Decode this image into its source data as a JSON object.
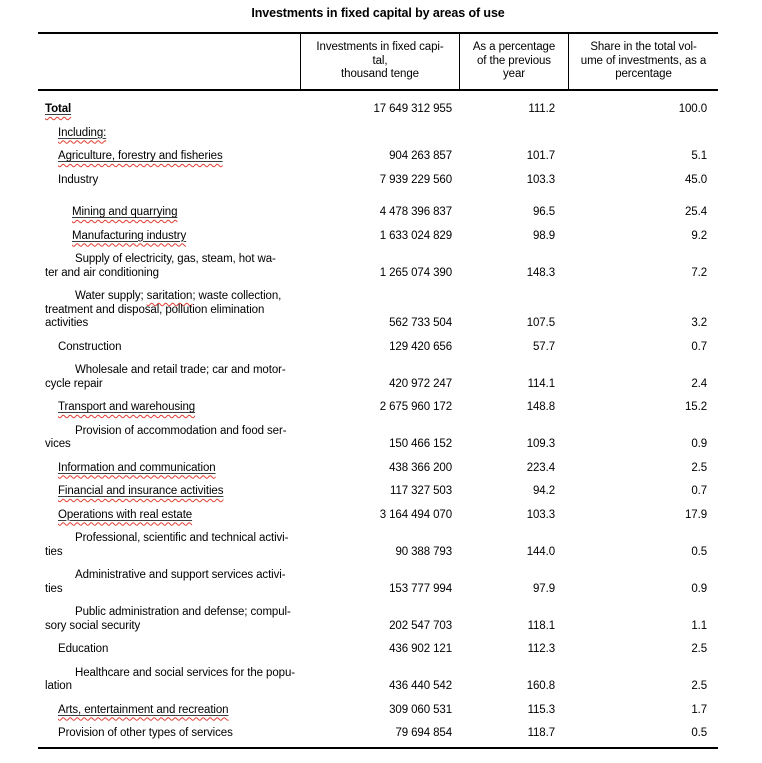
{
  "title": "Investments in fixed capital by areas of use",
  "colors": {
    "text": "#000000",
    "spellcheck_squiggle": "#e03b2f",
    "table_border": "#000000"
  },
  "table": {
    "columns": [
      {
        "label": ""
      },
      {
        "label": "Investments in fixed capi-\ntal,\nthousand tenge"
      },
      {
        "label": "As a percentage\nof the previous\nyear"
      },
      {
        "label": "Share in the total vol-\nume of investments, as a\npercentage"
      }
    ],
    "rows": [
      {
        "label_parts": [
          {
            "text": "Total",
            "style": "usq"
          }
        ],
        "bold": true,
        "indent": "total",
        "values": [
          "17 649 312 955",
          "111.2",
          "100.0"
        ]
      },
      {
        "label_parts": [
          {
            "text": "Including:",
            "style": "usq"
          }
        ],
        "indent": "l1",
        "values": [
          "",
          "",
          ""
        ]
      },
      {
        "label_parts": [
          {
            "text": "Agriculture, forestry and fisheries",
            "style": "usq"
          }
        ],
        "indent": "l1",
        "values": [
          "904 263 857",
          "101.7",
          "5.1"
        ]
      },
      {
        "label_parts": [
          {
            "text": "Industry",
            "style": "plain"
          }
        ],
        "indent": "l1",
        "values": [
          "7 939 229 560",
          "103.3",
          "45.0"
        ]
      },
      {
        "label_parts": [
          {
            "text": "Mining and quarrying",
            "style": "usq"
          }
        ],
        "indent": "l2",
        "gap_before": true,
        "values": [
          "4 478 396 837",
          "96.5",
          "25.4"
        ]
      },
      {
        "label_parts": [
          {
            "text": "Manufacturing industry",
            "style": "usq"
          }
        ],
        "indent": "l2",
        "values": [
          "1 633 024 829",
          "98.9",
          "9.2"
        ]
      },
      {
        "label_parts": [
          {
            "text": "Supply of electricity, gas, steam, hot wa-\nter and air conditioning",
            "style": "plain"
          }
        ],
        "indent": "wrap",
        "values": [
          "1 265 074 390",
          "148.3",
          "7.2"
        ]
      },
      {
        "label_parts": [
          {
            "text": "Water supply; ",
            "style": "plain"
          },
          {
            "text": "saritation",
            "style": "sq"
          },
          {
            "text": "; waste collection,\ntreatment and disposal, pollution elimination\nactivities",
            "style": "plain"
          }
        ],
        "indent": "wrap",
        "values": [
          "562 733 504",
          "107.5",
          "3.2"
        ]
      },
      {
        "label_parts": [
          {
            "text": "Construction",
            "style": "plain"
          }
        ],
        "indent": "l1",
        "values": [
          "129 420 656",
          "57.7",
          "0.7"
        ]
      },
      {
        "label_parts": [
          {
            "text": "Wholesale and retail trade; car and motor-\ncycle repair",
            "style": "plain"
          }
        ],
        "indent": "wrap",
        "values": [
          "420 972 247",
          "114.1",
          "2.4"
        ]
      },
      {
        "label_parts": [
          {
            "text": "Transport and warehousing",
            "style": "usq"
          }
        ],
        "indent": "l1",
        "values": [
          "2 675 960 172",
          "148.8",
          "15.2"
        ]
      },
      {
        "label_parts": [
          {
            "text": "Provision of accommodation and food ser-\nvices",
            "style": "plain"
          }
        ],
        "indent": "wrap",
        "values": [
          "150 466 152",
          "109.3",
          "0.9"
        ]
      },
      {
        "label_parts": [
          {
            "text": "Information and communication",
            "style": "usq"
          }
        ],
        "indent": "l1",
        "values": [
          "438 366 200",
          "223.4",
          "2.5"
        ]
      },
      {
        "label_parts": [
          {
            "text": "Financial and insurance activities",
            "style": "usq"
          }
        ],
        "indent": "l1",
        "values": [
          "117 327 503",
          "94.2",
          "0.7"
        ]
      },
      {
        "label_parts": [
          {
            "text": "Operations with real estate",
            "style": "usq"
          }
        ],
        "indent": "l1",
        "values": [
          "3 164 494 070",
          "103.3",
          "17.9"
        ]
      },
      {
        "label_parts": [
          {
            "text": "Professional, scientific and technical activi-\nties",
            "style": "plain"
          }
        ],
        "indent": "wrap",
        "values": [
          "90 388 793",
          "144.0",
          "0.5"
        ]
      },
      {
        "label_parts": [
          {
            "text": "Administrative and support services activi-\nties",
            "style": "plain"
          }
        ],
        "indent": "wrap",
        "values": [
          "153 777 994",
          "97.9",
          "0.9"
        ]
      },
      {
        "label_parts": [
          {
            "text": "Public administration and defense; compul-\nsory social security",
            "style": "plain"
          }
        ],
        "indent": "wrap",
        "values": [
          "202 547 703",
          "118.1",
          "1.1"
        ]
      },
      {
        "label_parts": [
          {
            "text": "Education",
            "style": "plain"
          }
        ],
        "indent": "l1",
        "values": [
          "436 902 121",
          "112.3",
          "2.5"
        ]
      },
      {
        "label_parts": [
          {
            "text": "Healthcare and social services for the popu-\nlation",
            "style": "plain"
          }
        ],
        "indent": "wrap",
        "values": [
          "436 440 542",
          "160.8",
          "2.5"
        ]
      },
      {
        "label_parts": [
          {
            "text": "Arts, entertainment and recreation",
            "style": "usq"
          }
        ],
        "indent": "l1",
        "values": [
          "309 060 531",
          "115.3",
          "1.7"
        ]
      },
      {
        "label_parts": [
          {
            "text": "Provision of other types of services",
            "style": "plain"
          }
        ],
        "indent": "l1",
        "values": [
          "79 694 854",
          "118.7",
          "0.5"
        ]
      }
    ]
  }
}
